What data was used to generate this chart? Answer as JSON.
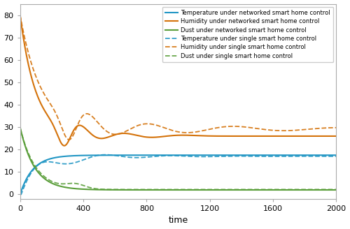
{
  "xlabel": "time",
  "xlim": [
    0,
    2000
  ],
  "ylim": [
    -2,
    85
  ],
  "yticks": [
    0,
    10,
    20,
    30,
    40,
    50,
    60,
    70,
    80
  ],
  "xticks": [
    0,
    400,
    800,
    1200,
    1600,
    2000
  ],
  "colors": {
    "temperature_networked": "#2196c4",
    "humidity_networked": "#d4720a",
    "dust_networked": "#5a9e3a",
    "temperature_single": "#2196c4",
    "humidity_single": "#d4720a",
    "dust_single": "#5a9e3a"
  },
  "legend_labels": [
    "Temperature under networked smart home control",
    "Humidity under networked smart home control",
    "Dust under networked smart home control",
    "Temperature under single smart home control",
    "Humidity under single smart home control",
    "Dust under single smart home control"
  ],
  "background_color": "#ffffff"
}
